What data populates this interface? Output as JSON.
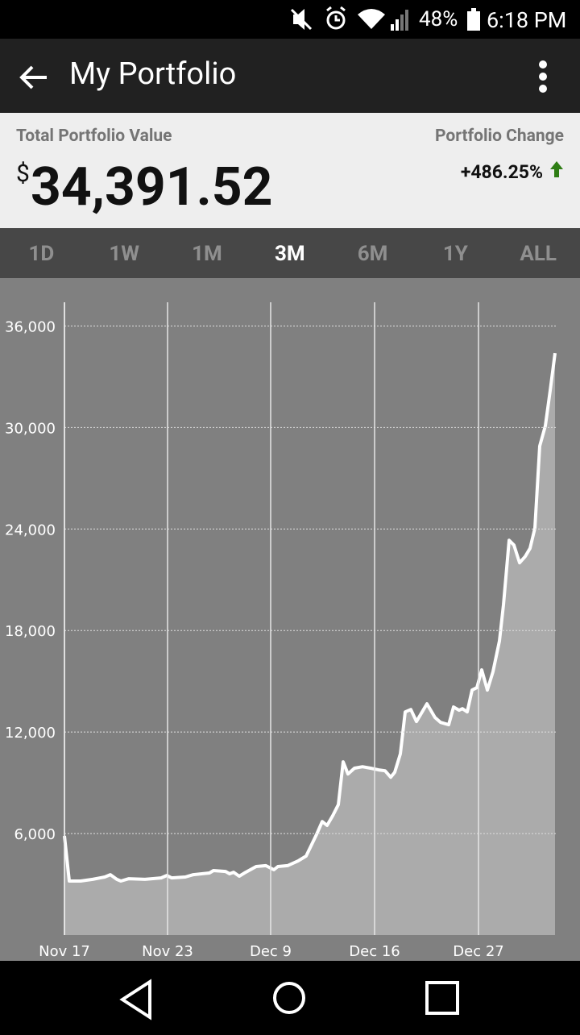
{
  "status_bar": {
    "battery": "48%",
    "time": "6:18 PM"
  },
  "app_bar": {
    "title": "My Portfolio"
  },
  "summary": {
    "value_label": "Total Portfolio Value",
    "currency": "$",
    "value": "34,391.52",
    "change_label": "Portfolio Change",
    "change": "+486.25%"
  },
  "tabs": [
    "1D",
    "1W",
    "1M",
    "3M",
    "6M",
    "1Y",
    "ALL"
  ],
  "active_tab": 3,
  "chart_data": {
    "type": "area",
    "color": "#ffffff",
    "fill": "#ababab",
    "grid": true,
    "x": [
      0,
      6,
      20,
      35,
      50,
      57,
      65,
      70,
      80,
      100,
      120,
      127,
      133,
      150,
      160,
      180,
      185,
      200,
      205,
      210,
      217,
      225,
      238,
      250,
      260,
      265,
      277,
      290,
      300,
      313,
      320,
      326,
      333,
      340,
      346,
      352,
      360,
      370,
      380,
      390,
      398,
      405,
      410,
      417,
      423,
      430,
      437,
      450,
      460,
      467,
      477,
      483,
      490,
      494,
      500,
      506,
      512,
      518,
      525,
      532,
      540,
      545,
      552,
      558,
      565,
      572,
      578,
      584,
      590,
      597,
      603,
      609
    ],
    "values": [
      5860,
      3190,
      3190,
      3290,
      3430,
      3570,
      3290,
      3190,
      3330,
      3290,
      3380,
      3520,
      3380,
      3430,
      3570,
      3670,
      3810,
      3760,
      3620,
      3710,
      3480,
      3710,
      4050,
      4100,
      3860,
      4050,
      4100,
      4380,
      4670,
      5950,
      6710,
      6480,
      7050,
      7710,
      10240,
      9520,
      9860,
      9950,
      9860,
      9760,
      9710,
      9330,
      9620,
      10710,
      13190,
      13330,
      12620,
      13670,
      12860,
      12570,
      12430,
      13480,
      13290,
      13380,
      13190,
      14480,
      14620,
      15670,
      14480,
      15570,
      17380,
      19520,
      23330,
      23050,
      22000,
      22380,
      22860,
      24050,
      28900,
      30100,
      32190,
      34391.52
    ],
    "xlim": [
      0,
      610
    ],
    "xticks": [
      {
        "value": 0,
        "label": "Nov 17"
      },
      {
        "value": 128,
        "label": "Nov 23"
      },
      {
        "value": 256,
        "label": "Dec 9"
      },
      {
        "value": 385,
        "label": "Dec 16"
      },
      {
        "value": 514,
        "label": "Dec 27"
      }
    ],
    "ylim": [
      0,
      37400
    ],
    "yticks": [
      {
        "value": 6000,
        "label": "6,000"
      },
      {
        "value": 12000,
        "label": "12,000"
      },
      {
        "value": 18000,
        "label": "18,000"
      },
      {
        "value": 24000,
        "label": "24,000"
      },
      {
        "value": 30000,
        "label": "30,000"
      },
      {
        "value": 36000,
        "label": "36,000"
      }
    ]
  }
}
